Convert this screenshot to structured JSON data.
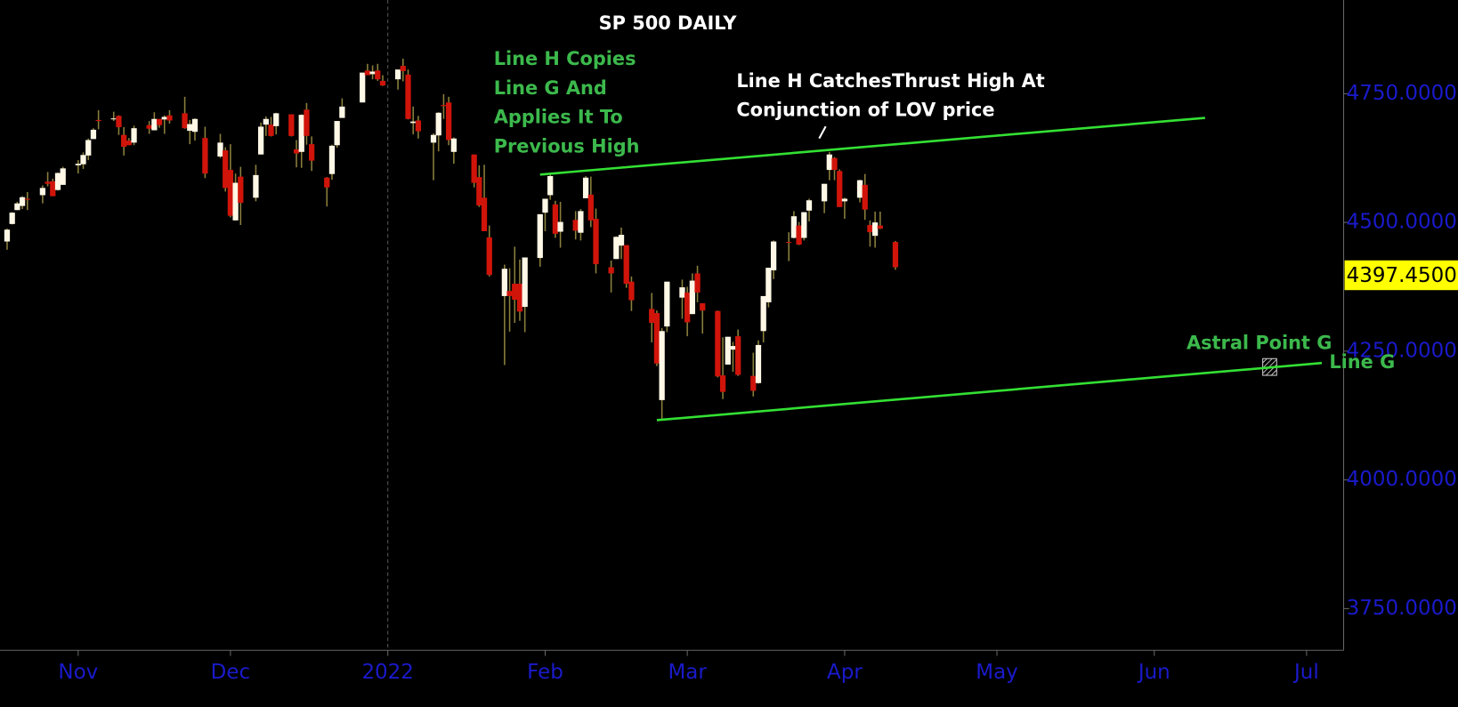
{
  "chart_data": {
    "type": "candlestick",
    "title": "SP 500 DAILY",
    "x": [
      -14,
      -13,
      -12,
      -11,
      -10,
      -7,
      -6,
      -5,
      -4,
      -3,
      0,
      1,
      2,
      3,
      4,
      7,
      8,
      9,
      10,
      11,
      14,
      15,
      16,
      17,
      18,
      21,
      22,
      23,
      25,
      28,
      29,
      30,
      31,
      32,
      35,
      36,
      37,
      38,
      39,
      42,
      43,
      44,
      45,
      46,
      49,
      50,
      51,
      52,
      56,
      57,
      58,
      59,
      60,
      63,
      64,
      65,
      66,
      67,
      70,
      71,
      72,
      73,
      74,
      78,
      79,
      80,
      81,
      84,
      85,
      86,
      87,
      88,
      91,
      92,
      93,
      94,
      95,
      98,
      99,
      100,
      101,
      102,
      105,
      106,
      107,
      108,
      109,
      113,
      114,
      115,
      116,
      119,
      120,
      121,
      122,
      123,
      126,
      127,
      128,
      129,
      130,
      133,
      134,
      135,
      136,
      137,
      140,
      141,
      142,
      143,
      144,
      147,
      148,
      149,
      150,
      151,
      154,
      155,
      156,
      157,
      158,
      161
    ],
    "open": [
      4463,
      4497,
      4524,
      4532,
      4546,
      4553,
      4579,
      4580,
      4563,
      4573,
      4611,
      4613,
      4630,
      4662,
      4699,
      4701,
      4707,
      4670,
      4659,
      4655,
      4689,
      4679,
      4701,
      4700,
      4708,
      4712,
      4678,
      4676,
      4664,
      4628,
      4640,
      4602,
      4504,
      4589,
      4548,
      4632,
      4690,
      4690,
      4687,
      4710,
      4642,
      4637,
      4719,
      4652,
      4587,
      4594,
      4650,
      4703,
      4733,
      4795,
      4788,
      4795,
      4775,
      4778,
      4804,
      4787,
      4693,
      4698,
      4655,
      4669,
      4728,
      4733,
      4637,
      4632,
      4588,
      4548,
      4471,
      4357,
      4367,
      4381,
      4381,
      4336,
      4431,
      4519,
      4553,
      4535,
      4482,
      4505,
      4480,
      4547,
      4554,
      4507,
      4413,
      4429,
      4455,
      4456,
      4385,
      4332,
      4324,
      4155,
      4298,
      4354,
      4364,
      4322,
      4401,
      4343,
      4328,
      4203,
      4224,
      4253,
      4279,
      4202,
      4188,
      4289,
      4345,
      4407,
      4462,
      4470,
      4494,
      4470,
      4523,
      4541,
      4602,
      4625,
      4600,
      4541,
      4548,
      4573,
      4495,
      4474,
      4494,
      4462
    ],
    "high": [
      4488,
      4520,
      4540,
      4551,
      4559,
      4572,
      4598,
      4585,
      4597,
      4608,
      4621,
      4636,
      4663,
      4683,
      4718,
      4715,
      4708,
      4685,
      4664,
      4688,
      4697,
      4714,
      4701,
      4708,
      4718,
      4744,
      4699,
      4702,
      4686,
      4672,
      4646,
      4652,
      4595,
      4608,
      4612,
      4694,
      4706,
      4705,
      4713,
      4710,
      4660,
      4710,
      4732,
      4667,
      4588,
      4651,
      4697,
      4741,
      4791,
      4808,
      4805,
      4808,
      4786,
      4796,
      4818,
      4797,
      4725,
      4707,
      4673,
      4714,
      4749,
      4744,
      4665,
      4632,
      4611,
      4612,
      4494,
      4418,
      4411,
      4453,
      4428,
      4432,
      4516,
      4546,
      4596,
      4542,
      4540,
      4522,
      4526,
      4590,
      4589,
      4527,
      4426,
      4473,
      4490,
      4456,
      4395,
      4363,
      4329,
      4295,
      4385,
      4389,
      4375,
      4401,
      4416,
      4343,
      4329,
      4277,
      4277,
      4268,
      4292,
      4247,
      4271,
      4357,
      4412,
      4465,
      4481,
      4522,
      4501,
      4520,
      4546,
      4575,
      4637,
      4627,
      4603,
      4548,
      4583,
      4594,
      4504,
      4521,
      4521,
      4464
    ],
    "low": [
      4447,
      4496,
      4524,
      4526,
      4524,
      4537,
      4570,
      4551,
      4562,
      4573,
      4595,
      4604,
      4621,
      4662,
      4681,
      4697,
      4670,
      4630,
      4650,
      4650,
      4672,
      4679,
      4684,
      4672,
      4692,
      4682,
      4652,
      4659,
      4586,
      4625,
      4560,
      4510,
      4504,
      4495,
      4541,
      4632,
      4668,
      4667,
      4671,
      4667,
      4607,
      4606,
      4651,
      4600,
      4531,
      4583,
      4645,
      4703,
      4733,
      4786,
      4778,
      4775,
      4765,
      4758,
      4774,
      4700,
      4671,
      4663,
      4582,
      4638,
      4701,
      4650,
      4614,
      4568,
      4530,
      4483,
      4395,
      4223,
      4288,
      4305,
      4309,
      4287,
      4414,
      4483,
      4544,
      4470,
      4451,
      4467,
      4465,
      4547,
      4491,
      4401,
      4364,
      4429,
      4429,
      4373,
      4328,
      4267,
      4221,
      4115,
      4287,
      4313,
      4279,
      4322,
      4345,
      4284,
      4199,
      4157,
      4224,
      4210,
      4202,
      4162,
      4187,
      4267,
      4335,
      4390,
      4425,
      4469,
      4456,
      4465,
      4502,
      4518,
      4582,
      4582,
      4530,
      4507,
      4539,
      4505,
      4453,
      4451,
      4487,
      4408
    ],
    "close": [
      4486,
      4519,
      4537,
      4549,
      4545,
      4567,
      4575,
      4551,
      4596,
      4605,
      4614,
      4631,
      4660,
      4680,
      4697,
      4702,
      4685,
      4647,
      4650,
      4683,
      4682,
      4701,
      4689,
      4705,
      4698,
      4683,
      4691,
      4701,
      4595,
      4655,
      4567,
      4513,
      4577,
      4538,
      4592,
      4686,
      4701,
      4668,
      4712,
      4668,
      4634,
      4709,
      4668,
      4620,
      4568,
      4649,
      4697,
      4725,
      4791,
      4786,
      4793,
      4778,
      4766,
      4797,
      4794,
      4701,
      4696,
      4677,
      4670,
      4713,
      4726,
      4660,
      4663,
      4577,
      4533,
      4483,
      4398,
      4410,
      4357,
      4350,
      4327,
      4432,
      4516,
      4546,
      4590,
      4478,
      4501,
      4484,
      4522,
      4587,
      4504,
      4419,
      4401,
      4472,
      4476,
      4381,
      4349,
      4305,
      4226,
      4289,
      4385,
      4374,
      4306,
      4387,
      4364,
      4329,
      4201,
      4171,
      4278,
      4260,
      4204,
      4173,
      4262,
      4357,
      4412,
      4463,
      4461,
      4512,
      4457,
      4520,
      4543,
      4575,
      4632,
      4602,
      4530,
      4546,
      4582,
      4525,
      4481,
      4500,
      4488,
      4413
    ],
    "up_color": "#fff8e6",
    "down_color": "#d0140a",
    "wick_color": "#8a7f3c",
    "xlim": [
      -15.4,
      249.3
    ],
    "ylim": [
      3669,
      4932
    ],
    "xticks": [
      {
        "value": 0,
        "label": "Nov"
      },
      {
        "value": 30,
        "label": "Dec"
      },
      {
        "value": 61,
        "label": "2022"
      },
      {
        "value": 92,
        "label": "Feb"
      },
      {
        "value": 120,
        "label": "Mar"
      },
      {
        "value": 151,
        "label": "Apr"
      },
      {
        "value": 181,
        "label": "May"
      },
      {
        "value": 212,
        "label": "Jun"
      },
      {
        "value": 242,
        "label": "Jul"
      }
    ],
    "yticks": [
      {
        "value": 3750,
        "label": "3750.0000"
      },
      {
        "value": 4000,
        "label": "4000.0000"
      },
      {
        "value": 4250,
        "label": "4250.0000"
      },
      {
        "value": 4500,
        "label": "4500.0000"
      },
      {
        "value": 4750,
        "label": "4750.0000"
      }
    ],
    "last_price": {
      "value": 4397.45,
      "label": "4397.4500"
    },
    "trendlines": [
      {
        "x": [
          91,
          222
        ],
        "values": [
          4593,
          4703
        ],
        "color": "#33e033"
      },
      {
        "name": "Line G",
        "x": [
          114,
          245
        ],
        "values": [
          4116,
          4227
        ],
        "color": "#33e033"
      }
    ],
    "annotations": [
      {
        "lines": [
          "Line H Copies",
          "Line G And",
          "Applies It To",
          "Previous High"
        ],
        "color": "#3cb94c"
      },
      {
        "lines": [
          "Line H CatchesThrust High At",
          "Conjunction of LOV price"
        ],
        "color": "#ffffff"
      },
      {
        "lines": [
          "Astral Point G"
        ],
        "color": "#3cb94c"
      }
    ]
  }
}
